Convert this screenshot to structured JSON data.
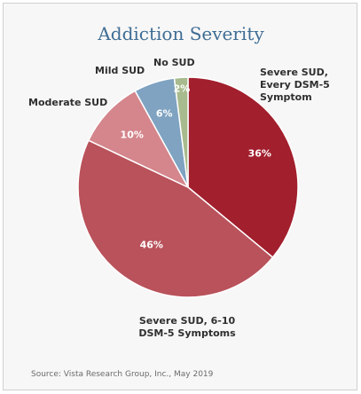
{
  "chart_data": {
    "type": "pie",
    "title": "Addiction Severity",
    "categories": [
      "Severe SUD, Every DSM-5 Symptom",
      "Severe SUD, 6-10 DSM-5 Symptoms",
      "Moderate SUD",
      "Mild SUD",
      "No SUD"
    ],
    "values": [
      36,
      46,
      10,
      6,
      2
    ],
    "value_labels": [
      "36%",
      "46%",
      "10%",
      "6%",
      "2%"
    ],
    "colors": [
      "#a21f2d",
      "#b9525b",
      "#d4868c",
      "#7fa3c1",
      "#a8bb8e"
    ],
    "start_angle_deg": 0,
    "direction": "clockwise",
    "source": "Source: Vista Research Group, Inc., May 2019"
  }
}
